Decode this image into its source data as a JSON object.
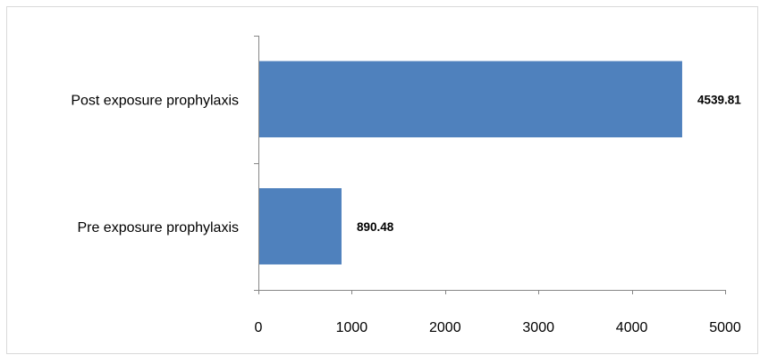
{
  "chart_data": {
    "type": "bar",
    "orientation": "horizontal",
    "categories": [
      "Post exposure prophylaxis",
      "Pre exposure prophylaxis"
    ],
    "values": [
      4539.81,
      890.48
    ],
    "data_labels": [
      "4539.81",
      "890.48"
    ],
    "xlim": [
      0,
      5000
    ],
    "x_ticks": [
      "0",
      "1000",
      "2000",
      "3000",
      "4000",
      "5000"
    ],
    "grid": false,
    "legend": "none",
    "bar_color": "#4f81bd"
  }
}
